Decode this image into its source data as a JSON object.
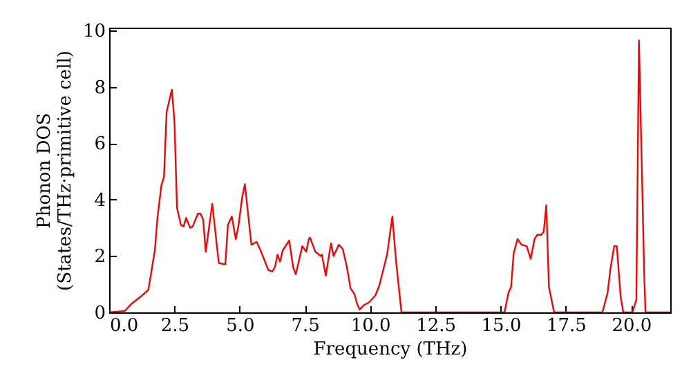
{
  "chart_data": {
    "type": "line",
    "xlabel": "Frequency (THz)",
    "ylabel": "Phonon DOS\n(States/THz·primitive cell)",
    "x": [
      0,
      0.6,
      0.85,
      1.2,
      1.5,
      1.6,
      1.75,
      1.85,
      2.0,
      2.1,
      2.2,
      2.4,
      2.5,
      2.6,
      2.75,
      2.85,
      2.95,
      3.1,
      3.2,
      3.4,
      3.5,
      3.6,
      3.7,
      3.95,
      4.2,
      4.45,
      4.55,
      4.7,
      4.85,
      4.95,
      5.1,
      5.2,
      5.45,
      5.65,
      5.8,
      6.1,
      6.25,
      6.35,
      6.45,
      6.55,
      6.65,
      6.9,
      7.05,
      7.15,
      7.3,
      7.4,
      7.55,
      7.65,
      7.7,
      7.9,
      8.1,
      8.15,
      8.3,
      8.5,
      8.6,
      8.8,
      8.95,
      9.1,
      9.25,
      9.4,
      9.5,
      9.6,
      9.75,
      9.95,
      10.2,
      10.35,
      10.5,
      10.65,
      10.85,
      11.0,
      11.2,
      15.15,
      15.3,
      15.4,
      15.5,
      15.65,
      15.8,
      16.0,
      16.15,
      16.3,
      16.4,
      16.55,
      16.65,
      16.75,
      16.85,
      17.05,
      18.9,
      19.1,
      19.2,
      19.35,
      19.45,
      19.6,
      19.7,
      20.05,
      20.2,
      20.3,
      20.5,
      20.55,
      21.5
    ],
    "series": [
      {
        "color": "#ff0000",
        "values": [
          0,
          0.05,
          0.3,
          0.55,
          0.8,
          1.35,
          2.2,
          3.35,
          4.5,
          4.8,
          7.1,
          7.9,
          6.8,
          3.7,
          3.1,
          3.05,
          3.35,
          3.0,
          3.05,
          3.5,
          3.5,
          3.3,
          2.15,
          3.85,
          1.75,
          1.7,
          3.1,
          3.4,
          2.6,
          3.05,
          4.1,
          4.55,
          2.4,
          2.5,
          2.2,
          1.5,
          1.45,
          1.6,
          2.05,
          1.8,
          2.2,
          2.55,
          1.6,
          1.35,
          1.95,
          2.35,
          2.15,
          2.6,
          2.65,
          2.15,
          2.0,
          2.05,
          1.3,
          2.45,
          2.0,
          2.4,
          2.25,
          1.65,
          0.85,
          0.65,
          0.3,
          0.1,
          0.25,
          0.35,
          0.6,
          0.95,
          1.5,
          2.05,
          3.4,
          1.75,
          0,
          0,
          0.7,
          0.9,
          2.1,
          2.6,
          2.4,
          2.35,
          1.9,
          2.6,
          2.75,
          2.75,
          2.85,
          3.8,
          0.9,
          0,
          0,
          0.7,
          1.5,
          2.35,
          2.35,
          0.55,
          0,
          0,
          0.45,
          9.65,
          1.4,
          0,
          0
        ]
      }
    ],
    "xlim": [
      0,
      21.5
    ],
    "xticks": [
      {
        "value": 0,
        "label": "0.0"
      },
      {
        "value": 2.5,
        "label": "2.5"
      },
      {
        "value": 5,
        "label": "5.0"
      },
      {
        "value": 7.5,
        "label": "7.5"
      },
      {
        "value": 10,
        "label": "10.0"
      },
      {
        "value": 12.5,
        "label": "12.5"
      },
      {
        "value": 15,
        "label": "15.0"
      },
      {
        "value": 17.5,
        "label": "17.5"
      },
      {
        "value": 20,
        "label": "20.0"
      }
    ],
    "ylim": [
      0,
      10.1
    ],
    "yticks": [
      0,
      2,
      4,
      6,
      8,
      10
    ],
    "grid": false,
    "marker": "none",
    "line_style": "solid"
  }
}
